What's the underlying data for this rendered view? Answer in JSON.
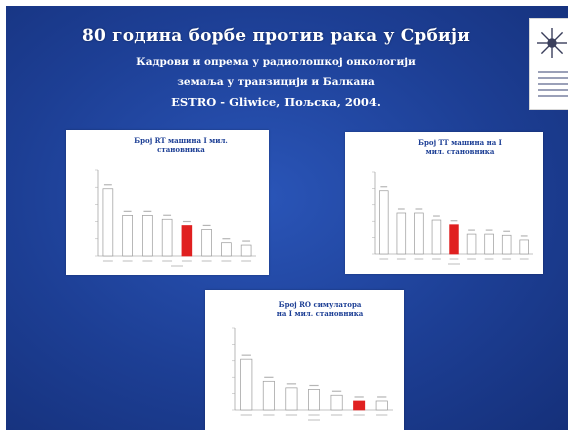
{
  "slide": {
    "title": "80 година борбе против рака у Србији",
    "subtitle_line1": "Кадрови и опрема у радиолошкој онкологији",
    "subtitle_line2": "земаља у транзицији и Балкана",
    "subtitle_line3": "ESTRO - Gliwice, Пољска, 2004.",
    "background_color": "#1d3f95",
    "highlight_color": "#e02020"
  },
  "charts": [
    {
      "title_line1": "Број RT машина I мил.",
      "title_line2": "становника",
      "chart_data": {
        "type": "bar",
        "values": [
          8.6,
          5.2,
          5.2,
          4.7,
          3.9,
          3.4,
          1.7,
          1.4
        ],
        "highlight_index": 4,
        "ylim": [
          0,
          11
        ]
      }
    },
    {
      "title_line1": "Број TT машина на I",
      "title_line2": "мил. становника",
      "chart_data": {
        "type": "bar",
        "values": [
          5.4,
          3.5,
          3.5,
          2.9,
          2.5,
          1.7,
          1.7,
          1.6,
          1.2
        ],
        "highlight_index": 4,
        "ylim": [
          0,
          7
        ]
      }
    },
    {
      "title_line1": "Број RO симулатора",
      "title_line2": "на I мил. становника",
      "chart_data": {
        "type": "bar",
        "values": [
          6.2,
          3.5,
          2.7,
          2.5,
          1.8,
          1.1,
          1.1
        ],
        "highlight_index": 5,
        "ylim": [
          0,
          10
        ]
      }
    }
  ]
}
